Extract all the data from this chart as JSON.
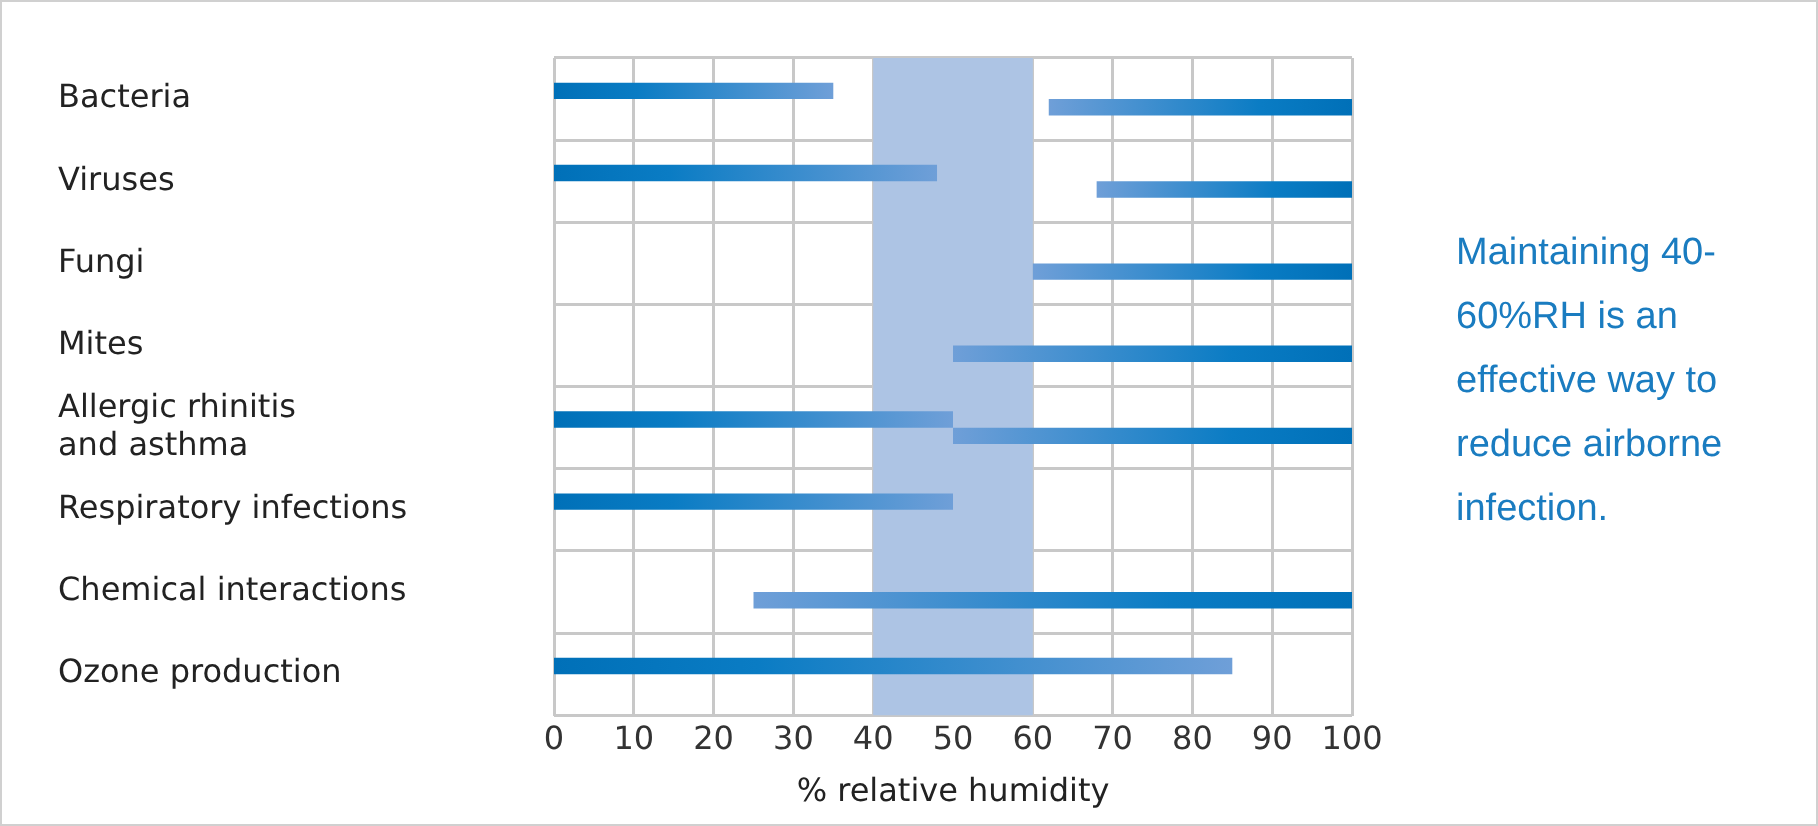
{
  "chart_data": {
    "type": "bar",
    "orientation": "horizontal",
    "xlabel": "% relative humidity",
    "categories": [
      "Bacteria",
      "Viruses",
      "Fungi",
      "Mites",
      "Allergic rhinitis and asthma",
      "Respiratory infections",
      "Chemical interactions",
      "Ozone production"
    ],
    "series": [
      {
        "color": "#0070b8",
        "base": [
          0,
          0,
          null,
          null,
          0,
          0,
          null,
          0
        ],
        "values": [
          35,
          48,
          null,
          null,
          50,
          50,
          null,
          85
        ]
      },
      {
        "color": "#0070b8",
        "base": [
          62,
          68,
          60,
          50,
          50,
          null,
          25,
          null
        ],
        "values": [
          38,
          32,
          40,
          50,
          50,
          null,
          75,
          null
        ]
      }
    ],
    "xlim": [
      0,
      100
    ],
    "xticks": [
      0,
      10,
      20,
      30,
      40,
      50,
      60,
      70,
      80,
      90,
      100
    ],
    "bands": [
      {
        "axis": "x",
        "from": 40,
        "to": 60,
        "color": "#adc4e4"
      }
    ],
    "annotations": [
      "Maintaining 40-60%RH is an effective way to reduce airborne infection."
    ],
    "grid": true,
    "legend": false
  }
}
